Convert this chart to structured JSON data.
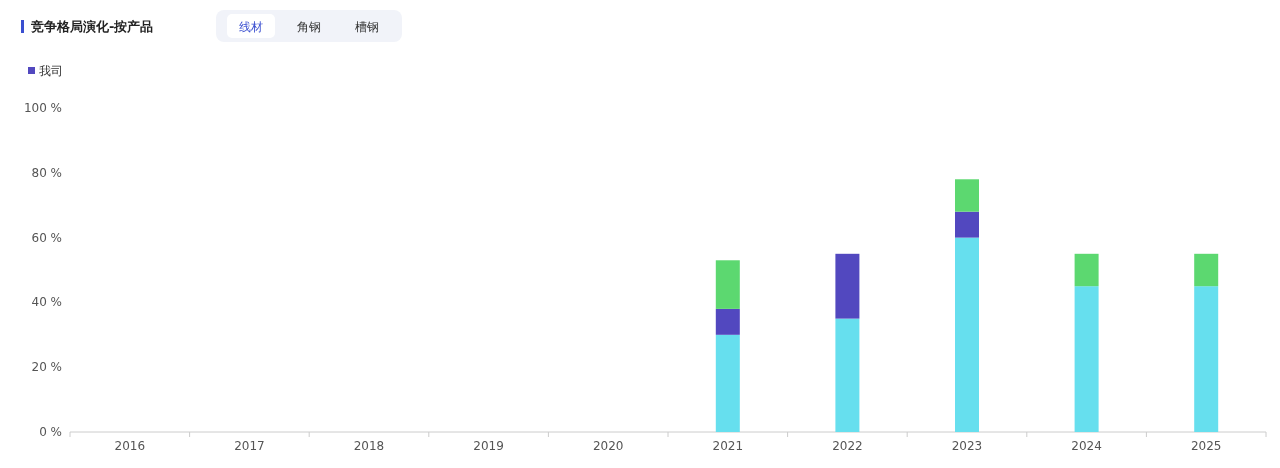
{
  "chart_data": {
    "type": "bar",
    "title": "竞争格局演化-按产品",
    "annotations": [
      "线材",
      "角钢",
      "槽钢"
    ],
    "categories": [
      "2016",
      "2017",
      "2018",
      "2019",
      "2020",
      "2021",
      "2022",
      "2023",
      "2024",
      "2025"
    ],
    "stacked": true,
    "legend": "top left",
    "grid": false,
    "series": [
      {
        "color": "#66dfee",
        "values": [
          0,
          0,
          0,
          0,
          0,
          30,
          35,
          60,
          45,
          45
        ]
      },
      {
        "name": "我司",
        "color": "#5248bf",
        "values": [
          0,
          0,
          0,
          0,
          0,
          8,
          20,
          8,
          0,
          0
        ]
      },
      {
        "color": "#5cd870",
        "values": [
          0,
          0,
          0,
          0,
          0,
          15,
          0,
          10,
          10,
          10
        ]
      }
    ],
    "ylim": [
      0,
      100
    ],
    "yticks": [
      {
        "value": 0,
        "label": "0 %"
      },
      {
        "value": 20,
        "label": "20 %"
      },
      {
        "value": 40,
        "label": "40 %"
      },
      {
        "value": 60,
        "label": "60 %"
      },
      {
        "value": 80,
        "label": "80 %"
      },
      {
        "value": 100,
        "label": "100 %"
      }
    ]
  }
}
